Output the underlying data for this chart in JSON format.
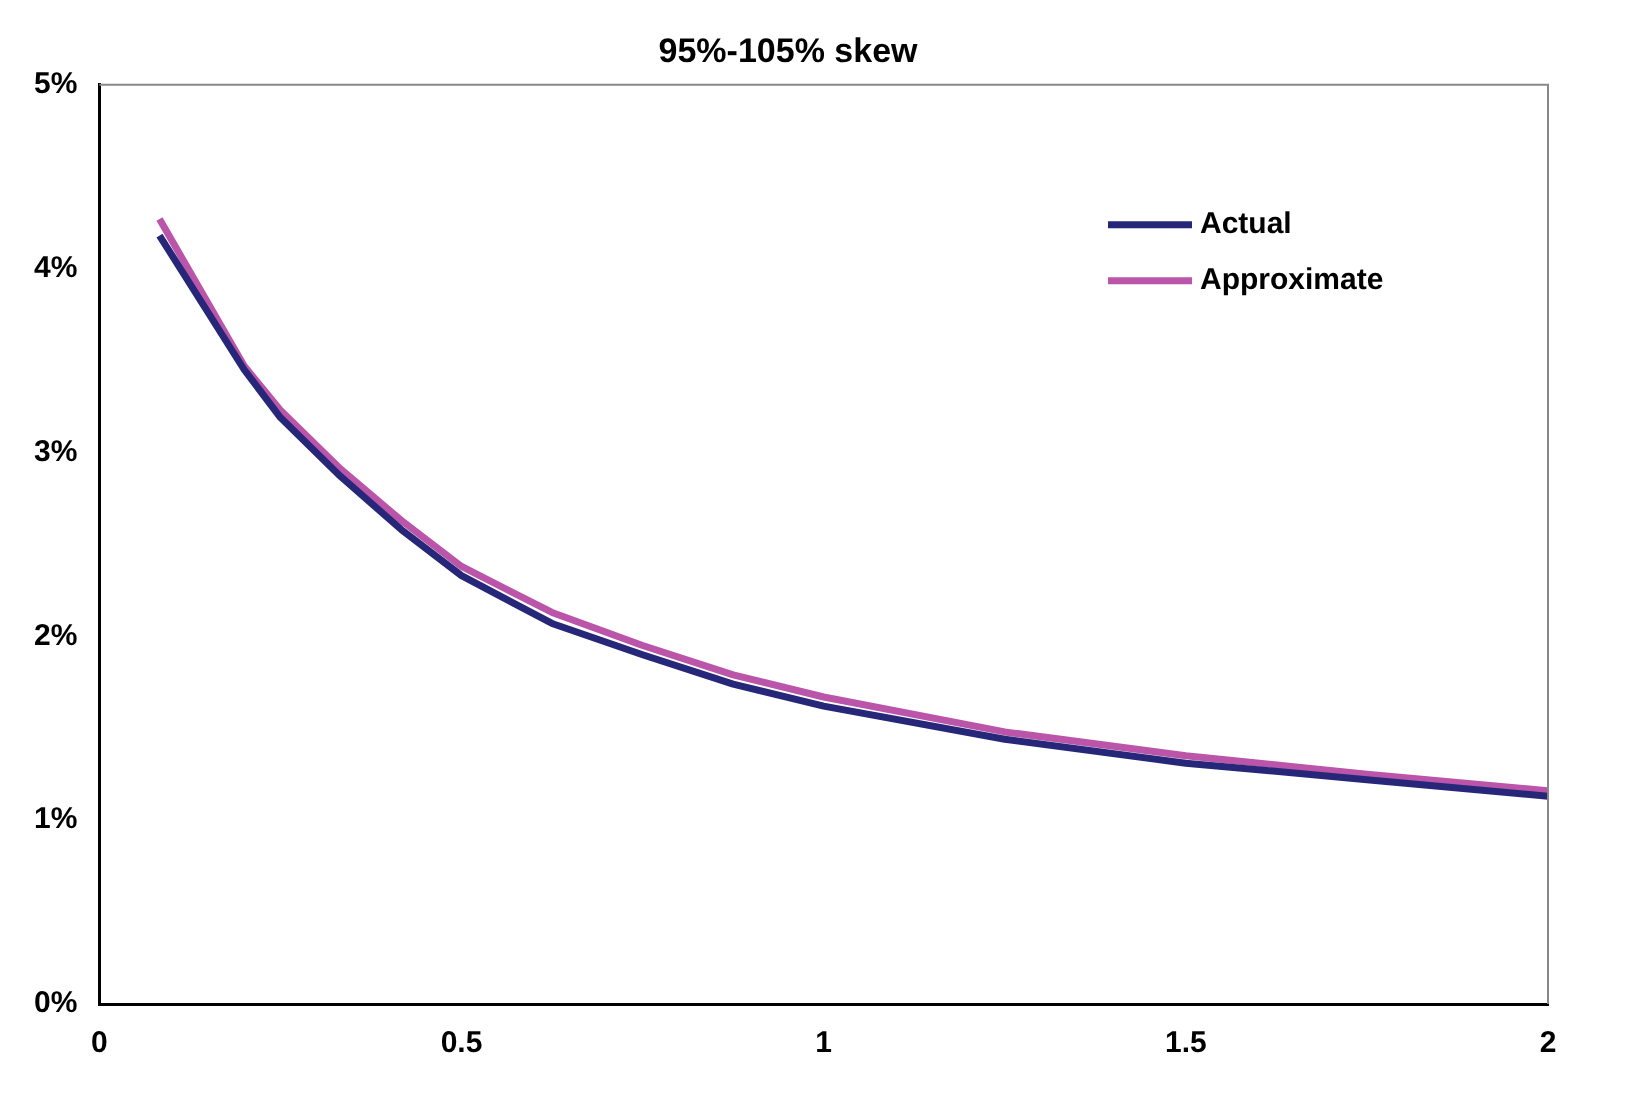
{
  "chart_data": {
    "type": "line",
    "title": "95%-105% skew",
    "x": [
      0.083,
      0.2,
      0.25,
      0.333,
      0.417,
      0.5,
      0.625,
      0.75,
      0.875,
      1,
      1.25,
      1.5,
      1.75,
      2
    ],
    "series": [
      {
        "name": "Actual",
        "color": "#27277a",
        "values": [
          4.18,
          3.45,
          3.19,
          2.87,
          2.58,
          2.33,
          2.07,
          1.9,
          1.74,
          1.62,
          1.44,
          1.31,
          1.22,
          1.13
        ]
      },
      {
        "name": "Approximate",
        "color": "#bb55aa",
        "values": [
          4.27,
          3.47,
          3.23,
          2.91,
          2.63,
          2.38,
          2.13,
          1.95,
          1.79,
          1.67,
          1.48,
          1.35,
          1.25,
          1.16
        ]
      }
    ],
    "xlim": [
      0,
      2
    ],
    "xticks": [
      0,
      0.5,
      1,
      1.5,
      2
    ],
    "ylim": [
      0,
      5
    ],
    "yticks": [
      {
        "value": 0,
        "label": "0%"
      },
      {
        "value": 1,
        "label": "1%"
      },
      {
        "value": 2,
        "label": "2%"
      },
      {
        "value": 3,
        "label": "3%"
      },
      {
        "value": 4,
        "label": "4%"
      },
      {
        "value": 5,
        "label": "5%"
      }
    ],
    "grid": false,
    "legend": "top right",
    "marker": "none",
    "line_style": "solid"
  }
}
